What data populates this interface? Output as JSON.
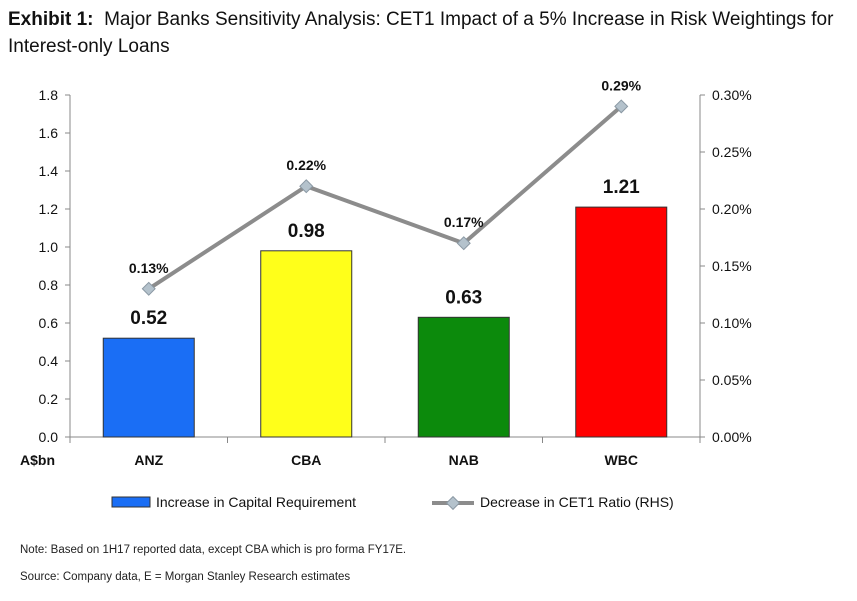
{
  "title": {
    "exhibit": "Exhibit 1:",
    "text": "Major Banks Sensitivity Analysis: CET1 Impact of a 5% Increase in Risk Weightings for Interest-only Loans"
  },
  "chart_data": {
    "type": "bar",
    "categories": [
      "ANZ",
      "CBA",
      "NAB",
      "WBC"
    ],
    "xlabel_left": "A$bn",
    "series": [
      {
        "name": "Increase in Capital Requirement",
        "axis": "left",
        "type": "bar",
        "values": [
          0.52,
          0.98,
          0.63,
          1.21
        ],
        "labels": [
          "0.52",
          "0.98",
          "0.63",
          "1.21"
        ],
        "colors": [
          "#1a6ef5",
          "#ffff1a",
          "#0c8a0c",
          "#ff0000"
        ]
      },
      {
        "name": "Decrease in CET1 Ratio (RHS)",
        "axis": "right",
        "type": "line",
        "values": [
          0.13,
          0.22,
          0.17,
          0.29
        ],
        "labels": [
          "0.13%",
          "0.22%",
          "0.17%",
          "0.29%"
        ],
        "color": "#8c8c8c",
        "marker_color": "#b4c2cc"
      }
    ],
    "y_left": {
      "range": [
        0,
        1.8
      ],
      "ticks": [
        "0.0",
        "0.2",
        "0.4",
        "0.6",
        "0.8",
        "1.0",
        "1.2",
        "1.4",
        "1.6",
        "1.8"
      ]
    },
    "y_right": {
      "range": [
        0,
        0.3
      ],
      "ticks": [
        "0.00%",
        "0.05%",
        "0.10%",
        "0.15%",
        "0.20%",
        "0.25%",
        "0.30%"
      ]
    },
    "grid": false,
    "legend_position": "bottom"
  },
  "notes": {
    "note": "Note: Based on 1H17 reported data, except CBA which is pro forma FY17E.",
    "source": "Source: Company data, E = Morgan Stanley Research estimates"
  }
}
